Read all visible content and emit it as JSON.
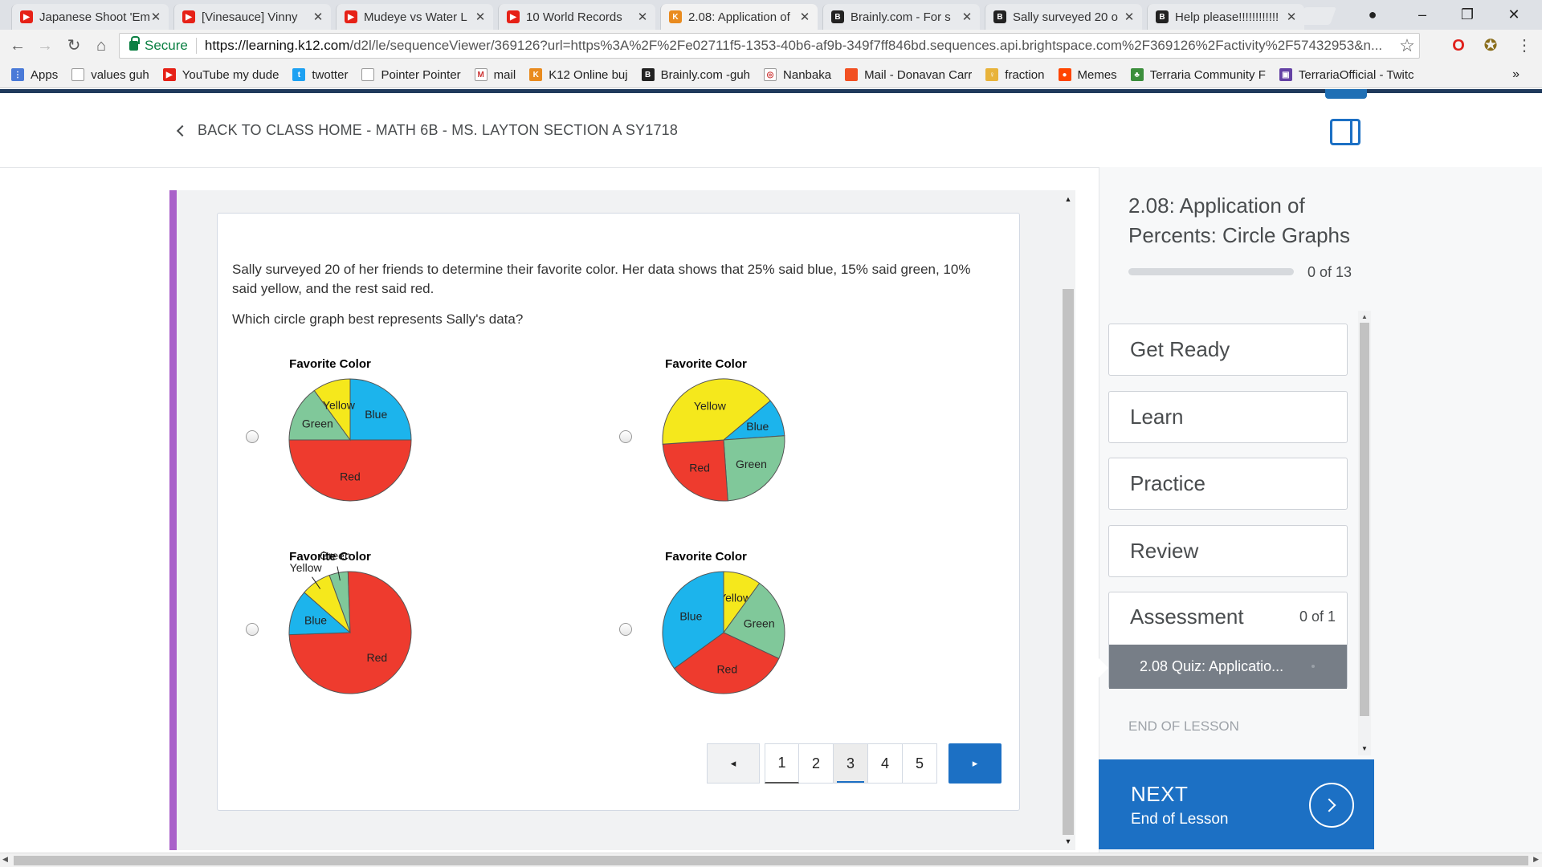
{
  "browser": {
    "tabs": [
      {
        "title": "Japanese Shoot 'Em",
        "favicon": "youtube-icon"
      },
      {
        "title": "[Vinesauce] Vinny",
        "favicon": "youtube-icon"
      },
      {
        "title": "Mudeye vs Water L",
        "favicon": "youtube-icon"
      },
      {
        "title": "10 World Records",
        "favicon": "youtube-icon"
      },
      {
        "title": "2.08: Application of",
        "favicon": "k12-icon",
        "active": true
      },
      {
        "title": "Brainly.com - For s",
        "favicon": "brainly-icon"
      },
      {
        "title": "Sally surveyed 20 o",
        "favicon": "brainly-icon"
      },
      {
        "title": "Help please!!!!!!!!!!!!",
        "favicon": "brainly-icon"
      }
    ],
    "secure_label": "Secure",
    "url_host": "https://learning.k12.com",
    "url_path": "/d2l/le/sequenceViewer/369126?url=https%3A%2F%2Fe02711f5-1353-40b6-af9b-349f7ff846bd.sequences.api.brightspace.com%2F369126%2Factivity%2F57432953&n...",
    "bookmarks": [
      {
        "label": "Apps",
        "icon": "apps-grid-icon"
      },
      {
        "label": "values guh",
        "icon": "page-icon"
      },
      {
        "label": "YouTube my dude",
        "icon": "youtube-icon"
      },
      {
        "label": "twotter",
        "icon": "twitter-icon"
      },
      {
        "label": "Pointer Pointer",
        "icon": "page-icon"
      },
      {
        "label": "mail",
        "icon": "gmail-icon"
      },
      {
        "label": "K12 Online buj",
        "icon": "k12-icon"
      },
      {
        "label": "Brainly.com -guh",
        "icon": "brainly-icon"
      },
      {
        "label": "Nanbaka",
        "icon": "nanbaka-icon"
      },
      {
        "label": "Mail - Donavan Carr",
        "icon": "microsoft-icon"
      },
      {
        "label": "fraction",
        "icon": "bulb-icon"
      },
      {
        "label": "Memes",
        "icon": "reddit-icon"
      },
      {
        "label": "Terraria Community F",
        "icon": "terraria-icon"
      },
      {
        "label": "TerrariaOfficial - Twitc",
        "icon": "twitch-icon"
      }
    ],
    "more_bookmarks": "»"
  },
  "header": {
    "breadcrumb": "BACK TO CLASS HOME - MATH 6B - MS. LAYTON SECTION A SY1718"
  },
  "question": {
    "text": "Sally surveyed 20 of her friends to determine their favorite color. Her data shows that 25% said blue, 15% said green, 10% said yellow, and the rest said red.",
    "prompt": "Which circle graph best represents Sally's data?"
  },
  "colors": {
    "blue": "#1cb4ec",
    "green": "#80c89a",
    "yellow": "#f5e81c",
    "red": "#ee3b2e",
    "accent": "#1c70c4",
    "purple": "#a961c9"
  },
  "chart_data": [
    {
      "type": "pie",
      "title": "Favorite Color",
      "option": "A",
      "slices": [
        {
          "label": "Blue",
          "value": 25
        },
        {
          "label": "Red",
          "value": 50
        },
        {
          "label": "Green",
          "value": 15
        },
        {
          "label": "Yellow",
          "value": 10
        }
      ]
    },
    {
      "type": "pie",
      "title": "Favorite Color",
      "option": "B",
      "slices": [
        {
          "label": "Blue",
          "value": 10
        },
        {
          "label": "Green",
          "value": 25
        },
        {
          "label": "Red",
          "value": 25
        },
        {
          "label": "Yellow",
          "value": 40
        }
      ]
    },
    {
      "type": "pie",
      "title": "Favorite Color",
      "option": "C",
      "slices": [
        {
          "label": "Green",
          "value": 5
        },
        {
          "label": "Red",
          "value": 75
        },
        {
          "label": "Blue",
          "value": 12
        },
        {
          "label": "Yellow",
          "value": 8
        }
      ]
    },
    {
      "type": "pie",
      "title": "Favorite Color",
      "option": "D",
      "slices": [
        {
          "label": "Yellow",
          "value": 10
        },
        {
          "label": "Green",
          "value": 22
        },
        {
          "label": "Red",
          "value": 33
        },
        {
          "label": "Blue",
          "value": 35
        }
      ]
    }
  ],
  "pager": {
    "prev": "◂",
    "pages": [
      "1",
      "2",
      "3",
      "4",
      "5"
    ],
    "current": "3",
    "next": "▸"
  },
  "sidebar": {
    "lesson_title": "2.08: Application of Percents: Circle Graphs",
    "progress_label": "0 of 13",
    "progress": 0,
    "sections": [
      "Get Ready",
      "Learn",
      "Practice",
      "Review"
    ],
    "assessment_label": "Assessment",
    "assessment_count": "0 of 1",
    "quiz_label": "2.08 Quiz: Applicatio...",
    "end_label": "END OF LESSON",
    "next_title": "NEXT",
    "next_sub": "End of Lesson"
  }
}
